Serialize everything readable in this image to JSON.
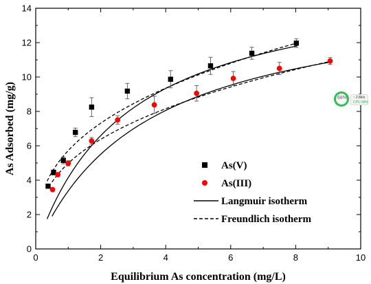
{
  "chart_data": {
    "type": "scatter",
    "title": "",
    "xlabel": "Equilibrium As concentration (mg/L)",
    "ylabel": "As Adsorbed (mg/g)",
    "xlim": [
      0,
      10
    ],
    "ylim": [
      0,
      14
    ],
    "xticks": [
      0,
      2,
      4,
      6,
      8,
      10
    ],
    "yticks": [
      0,
      2,
      4,
      6,
      8,
      10,
      12,
      14
    ],
    "grid": false,
    "legend_position": "lower-right",
    "series": [
      {
        "name": "As(V)",
        "marker": "square",
        "color": "#000000",
        "x": [
          0.38,
          0.55,
          0.85,
          1.22,
          1.72,
          2.82,
          4.15,
          5.38,
          6.65,
          8.02
        ],
        "y": [
          3.65,
          4.45,
          5.15,
          6.78,
          8.25,
          9.18,
          9.87,
          10.65,
          11.38,
          11.97
        ],
        "err": [
          0.1,
          0.15,
          0.2,
          0.25,
          0.55,
          0.45,
          0.5,
          0.5,
          0.35,
          0.25
        ]
      },
      {
        "name": "As(III)",
        "marker": "circle",
        "color": "#ff0000",
        "x": [
          0.52,
          0.68,
          1.0,
          1.72,
          2.52,
          3.65,
          4.95,
          6.08,
          7.5,
          9.06
        ],
        "y": [
          3.45,
          4.32,
          4.98,
          6.28,
          7.5,
          8.38,
          9.05,
          9.92,
          10.5,
          10.93
        ],
        "err": [
          0.1,
          0.1,
          0.15,
          0.2,
          0.25,
          0.5,
          0.45,
          0.4,
          0.35,
          0.2
        ]
      }
    ],
    "fits": [
      {
        "name": "Langmuir isotherm",
        "style": "solid",
        "curves": [
          {
            "for": "As(V)",
            "model": "langmuir",
            "qmax": 16.0,
            "K": 0.35,
            "x_range": [
              0.35,
              8.05
            ]
          },
          {
            "for": "As(III)",
            "model": "langmuir",
            "qmax": 15.0,
            "K": 0.29,
            "x_range": [
              0.5,
              9.1
            ]
          }
        ]
      },
      {
        "name": "Freundlich isotherm",
        "style": "dashed",
        "curves": [
          {
            "for": "As(V)",
            "model": "freundlich",
            "Kf": 5.72,
            "n": 2.82,
            "x_range": [
              0.35,
              8.05
            ]
          },
          {
            "for": "As(III)",
            "model": "freundlich",
            "Kf": 4.98,
            "n": 2.81,
            "x_range": [
              0.5,
              9.1
            ]
          }
        ]
      }
    ]
  },
  "widget": {
    "percent": "68%",
    "line1": "↑ 2.8k/s",
    "line2": "CPU 68%",
    "color": "#2fbf4f"
  }
}
